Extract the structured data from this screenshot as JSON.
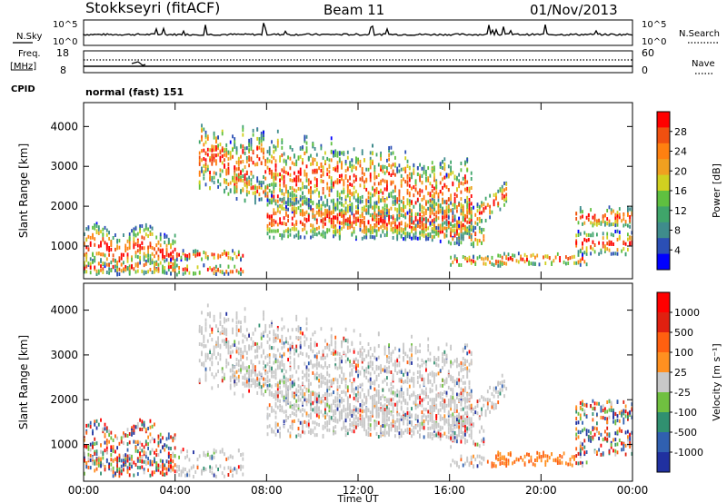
{
  "header": {
    "station": "Stokkseyri (fitACF)",
    "beam": "Beam 11",
    "date": "01/Nov/2013"
  },
  "strip": {
    "nsky_label": "N.Sky",
    "nsky_ticks": [
      "10^5",
      "10^0"
    ],
    "nsearch_label": "N.Search",
    "nsearch_ticks": [
      "10^5",
      "10^0"
    ],
    "freq_label": "Freq.",
    "freq_unit": "[MHz]",
    "freq_ticks": [
      "18",
      "8"
    ],
    "nave_label": "Nave",
    "nave_ticks": [
      "60",
      "0"
    ],
    "cpid_label": "CPID",
    "mode": "normal (fast) 151"
  },
  "chart_data": [
    {
      "type": "heatmap",
      "panel": "power",
      "ylabel": "Slant Range [km]",
      "yticks": [
        1000,
        2000,
        3000,
        4000
      ],
      "ylim": [
        180,
        4600
      ],
      "xlim": [
        0,
        24
      ],
      "xticks": [
        "00:00",
        "04:00",
        "08:00",
        "12:00",
        "16:00",
        "20:00",
        "00:00"
      ],
      "colorbar": {
        "label": "Power [dB]",
        "ticks": [
          "28",
          "24",
          "20",
          "16",
          "12",
          "8",
          "4"
        ],
        "colors": [
          "#0000ff",
          "#2b4fb5",
          "#3f8c8c",
          "#3fa56a",
          "#5fc040",
          "#d0d020",
          "#f0a020",
          "#ff8010",
          "#f05010",
          "#ff0000"
        ]
      }
    },
    {
      "type": "heatmap",
      "panel": "velocity",
      "ylabel": "Slant Range [km]",
      "yticks": [
        1000,
        2000,
        3000,
        4000
      ],
      "ylim": [
        180,
        4600
      ],
      "xlim": [
        0,
        24
      ],
      "xticks": [
        "00:00",
        "04:00",
        "08:00",
        "12:00",
        "16:00",
        "20:00",
        "00:00"
      ],
      "xlabel": "Time UT",
      "colorbar": {
        "label": "Velocity [m s⁻¹]",
        "ticks": [
          "1000",
          "500",
          "100",
          "25",
          "-25",
          "-100",
          "-500",
          "-1000"
        ],
        "colors": [
          "#2030a0",
          "#3060b0",
          "#309070",
          "#70c040",
          "#c8c8c8",
          "#ff9020",
          "#ff6010",
          "#e02010",
          "#ff0000"
        ]
      }
    }
  ]
}
